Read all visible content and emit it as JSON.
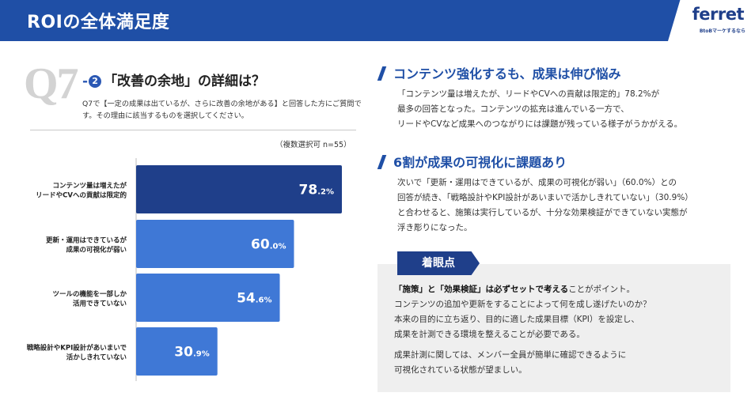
{
  "header": {
    "title": "ROIの全体満足度",
    "logo": "ferret",
    "logo_sub": "BtoBマーケするなら"
  },
  "question": {
    "number": "Q7",
    "dash": "-",
    "circle_num": "2",
    "title": "「改善の余地」の詳細は？",
    "desc": "Q7で【一定の成果は出ているが、さらに改善の余地がある】と回答した方にご質問です。その理由に該当するものを選択してください。",
    "note": "（複数選択可 n=55）"
  },
  "chart_data": {
    "type": "bar",
    "orientation": "horizontal",
    "categories": [
      [
        "コンテンツ量は増えたが",
        "リードやCVへの貢献は限定的"
      ],
      [
        "更新・運用はできているが",
        "成果の可視化が弱い"
      ],
      [
        "ツールの機能を一部しか",
        "活用できていない"
      ],
      [
        "戦略設計やKPI設計があいまいで",
        "活かしきれていない"
      ]
    ],
    "values": [
      78.2,
      60.0,
      54.6,
      30.9
    ],
    "value_labels": [
      [
        "78",
        ".2%"
      ],
      [
        "60",
        ".0%"
      ],
      [
        "54",
        ".6%"
      ],
      [
        "30",
        ".9%"
      ]
    ],
    "xlim": [
      0,
      80
    ],
    "colors": [
      "#1f3f8a",
      "#3f78d6",
      "#3f78d6",
      "#3f78d6"
    ]
  },
  "right": {
    "section1": {
      "title": "コンテンツ強化するも、成果は伸び悩み",
      "lines": [
        "「コンテンツ量は増えたが、リードやCVへの貢献は限定的」78.2%が",
        "最多の回答となった。コンテンツの拡充は進んでいる一方で、",
        "リードやCVなど成果へのつながりには課題が残っている様子がうかがえる。"
      ]
    },
    "section2": {
      "title": "6割が成果の可視化に課題あり",
      "lines": [
        "次いで「更新・運用はできているが、成果の可視化が弱い」（60.0%）との",
        "回答が続き、「戦略設計やKPI設計があいまいで活かしきれていない」（30.9%）",
        "と合わせると、施策は実行しているが、十分な効果検証ができていない実態が",
        "浮き彫りになった。"
      ]
    },
    "keypoint": {
      "label": "着眼点",
      "bold": "「施策」と「効果検証」は必ずセットで考える",
      "bold_tail": "ことがポイント。",
      "lines": [
        "コンテンツの追加や更新をすることによって何を成し遂げたいのか？",
        "本来の目的に立ち返り、目的に適した成果目標（KPI）を設定し、",
        "成果を計測できる環境を整えることが必要である。"
      ],
      "lines2": [
        "成果計測に関しては、メンバー全員が簡単に確認できるように",
        "可視化されている状態が望ましい。"
      ]
    }
  }
}
